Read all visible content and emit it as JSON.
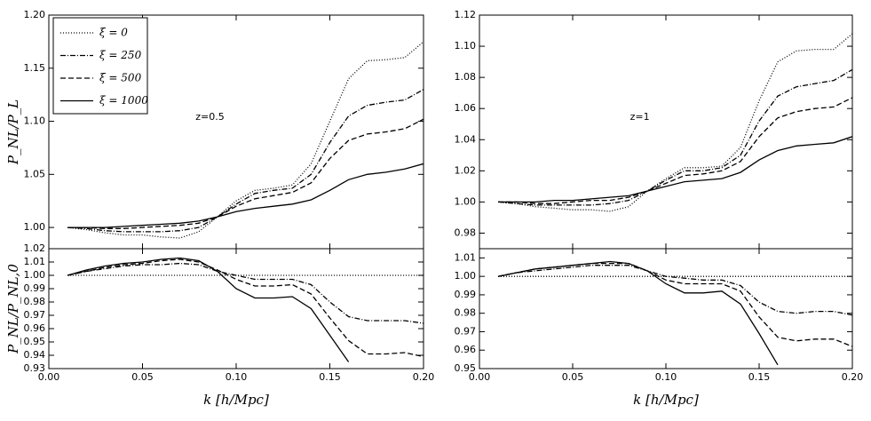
{
  "chart_data": [
    {
      "type": "line",
      "ylabel": "P_NL/P_L",
      "annotation": "z=0.5",
      "legend": "upper left",
      "x": [
        0.01,
        0.02,
        0.03,
        0.04,
        0.05,
        0.06,
        0.07,
        0.08,
        0.09,
        0.1,
        0.11,
        0.12,
        0.13,
        0.14,
        0.15,
        0.16,
        0.17,
        0.18,
        0.19,
        0.2
      ],
      "xlim": [
        0,
        0.2
      ],
      "xticks": [
        0,
        0.05,
        0.1,
        0.15,
        0.2
      ],
      "ylim": [
        0.98,
        1.2
      ],
      "yticks": [
        {
          "value": 1.0,
          "label": "1.00"
        },
        1.05,
        {
          "value": 1.1,
          "label": "1.10"
        },
        1.15,
        {
          "value": 1.2,
          "label": "1.20"
        }
      ],
      "series": [
        {
          "name": "ξ = 0",
          "color": "#000000",
          "dash": "1,2",
          "values": [
            1.0,
            0.998,
            0.995,
            0.993,
            0.993,
            0.991,
            0.99,
            0.996,
            1.01,
            1.025,
            1.035,
            1.037,
            1.04,
            1.06,
            1.1,
            1.14,
            1.157,
            1.158,
            1.16,
            1.175
          ]
        },
        {
          "name": "ξ = 250",
          "color": "#000000",
          "dash": "6,2,1,2",
          "values": [
            1.0,
            0.999,
            0.997,
            0.996,
            0.996,
            0.996,
            0.997,
            1.0,
            1.01,
            1.022,
            1.032,
            1.035,
            1.037,
            1.05,
            1.08,
            1.105,
            1.115,
            1.118,
            1.12,
            1.13
          ]
        },
        {
          "name": "ξ = 500",
          "color": "#000000",
          "dash": "6,3",
          "values": [
            1.0,
            1.0,
            0.999,
            0.999,
            1.0,
            1.001,
            1.002,
            1.004,
            1.01,
            1.02,
            1.027,
            1.03,
            1.033,
            1.042,
            1.065,
            1.082,
            1.088,
            1.09,
            1.093,
            1.102
          ]
        },
        {
          "name": "ξ = 1000",
          "color": "#000000",
          "dash": "none",
          "values": [
            1.0,
            1.0,
            1.0,
            1.001,
            1.002,
            1.003,
            1.004,
            1.006,
            1.01,
            1.015,
            1.018,
            1.02,
            1.022,
            1.026,
            1.035,
            1.045,
            1.05,
            1.052,
            1.055,
            1.06
          ]
        }
      ]
    },
    {
      "type": "line",
      "annotation": "z=1",
      "x": [
        0.01,
        0.02,
        0.03,
        0.04,
        0.05,
        0.06,
        0.07,
        0.08,
        0.09,
        0.1,
        0.11,
        0.12,
        0.13,
        0.14,
        0.15,
        0.16,
        0.17,
        0.18,
        0.19,
        0.2
      ],
      "xlim": [
        0,
        0.2
      ],
      "xticks": [
        0,
        0.05,
        0.1,
        0.15,
        0.2
      ],
      "ylim": [
        0.97,
        1.12
      ],
      "yticks": [
        0.98,
        {
          "value": 1.0,
          "label": "1.00"
        },
        1.02,
        1.04,
        1.06,
        1.08,
        {
          "value": 1.1,
          "label": "1.10"
        },
        1.12
      ],
      "series": [
        {
          "color": "#000000",
          "dash": "1,2",
          "values": [
            1.0,
            0.999,
            0.997,
            0.996,
            0.995,
            0.995,
            0.994,
            0.997,
            1.007,
            1.015,
            1.022,
            1.022,
            1.023,
            1.035,
            1.065,
            1.09,
            1.097,
            1.098,
            1.098,
            1.108
          ]
        },
        {
          "color": "#000000",
          "dash": "6,2,1,2",
          "values": [
            1.0,
            0.999,
            0.998,
            0.998,
            0.998,
            0.998,
            0.999,
            1.001,
            1.007,
            1.014,
            1.02,
            1.02,
            1.022,
            1.03,
            1.052,
            1.068,
            1.074,
            1.076,
            1.078,
            1.085
          ]
        },
        {
          "color": "#000000",
          "dash": "6,3",
          "values": [
            1.0,
            1.0,
            0.999,
            0.999,
            1.0,
            1.001,
            1.001,
            1.003,
            1.007,
            1.012,
            1.017,
            1.018,
            1.02,
            1.026,
            1.042,
            1.054,
            1.058,
            1.06,
            1.061,
            1.067
          ]
        },
        {
          "color": "#000000",
          "dash": "none",
          "values": [
            1.0,
            1.0,
            1.0,
            1.001,
            1.001,
            1.002,
            1.003,
            1.004,
            1.007,
            1.01,
            1.013,
            1.014,
            1.015,
            1.019,
            1.027,
            1.033,
            1.036,
            1.037,
            1.038,
            1.042
          ]
        }
      ]
    },
    {
      "type": "line",
      "ylabel": "P_NL/P_NL,0",
      "xlabel": "k [h/Mpc]",
      "x": [
        0.01,
        0.02,
        0.03,
        0.04,
        0.05,
        0.06,
        0.07,
        0.08,
        0.09,
        0.1,
        0.11,
        0.12,
        0.13,
        0.14,
        0.15,
        0.16,
        0.17,
        0.18,
        0.19,
        0.2
      ],
      "xlim": [
        0,
        0.2
      ],
      "xticks": [
        {
          "value": 0,
          "label": "0.00"
        },
        0.05,
        {
          "value": 0.1,
          "label": "0.10"
        },
        0.15,
        {
          "value": 0.2,
          "label": "0.20"
        }
      ],
      "ylim": [
        0.93,
        1.02
      ],
      "yticks": [
        0.93,
        0.94,
        0.95,
        0.96,
        0.97,
        0.98,
        0.99,
        {
          "value": 1.0,
          "label": "1.00"
        },
        1.01,
        1.02
      ],
      "series": [
        {
          "color": "#000000",
          "dash": "1,2",
          "values": [
            1,
            1,
            1,
            1,
            1,
            1,
            1,
            1,
            1,
            1,
            1,
            1,
            1,
            1,
            1,
            1,
            1,
            1,
            1,
            1
          ]
        },
        {
          "color": "#000000",
          "dash": "6,2,1,2",
          "values": [
            1.0,
            1.003,
            1.005,
            1.007,
            1.008,
            1.008,
            1.009,
            1.008,
            1.003,
            1.0,
            0.997,
            0.997,
            0.997,
            0.993,
            0.98,
            0.969,
            0.966,
            0.966,
            0.966,
            0.964
          ]
        },
        {
          "color": "#000000",
          "dash": "6,3",
          "values": [
            1.0,
            1.003,
            1.006,
            1.008,
            1.009,
            1.011,
            1.012,
            1.01,
            1.004,
            0.997,
            0.992,
            0.992,
            0.993,
            0.986,
            0.968,
            0.951,
            0.941,
            0.941,
            0.942,
            0.939
          ]
        },
        {
          "color": "#000000",
          "dash": "none",
          "values": [
            1.0,
            1.004,
            1.007,
            1.009,
            1.01,
            1.012,
            1.013,
            1.011,
            1.003,
            0.99,
            0.983,
            0.983,
            0.984,
            0.975,
            0.955,
            0.935,
            null,
            null,
            null,
            null
          ]
        }
      ]
    },
    {
      "type": "line",
      "xlabel": "k [h/Mpc]",
      "x": [
        0.01,
        0.02,
        0.03,
        0.04,
        0.05,
        0.06,
        0.07,
        0.08,
        0.09,
        0.1,
        0.11,
        0.12,
        0.13,
        0.14,
        0.15,
        0.16,
        0.17,
        0.18,
        0.19,
        0.2
      ],
      "xlim": [
        0,
        0.2
      ],
      "xticks": [
        {
          "value": 0,
          "label": "0.00"
        },
        0.05,
        {
          "value": 0.1,
          "label": "0.10"
        },
        0.15,
        {
          "value": 0.2,
          "label": "0.20"
        }
      ],
      "ylim": [
        0.95,
        1.015
      ],
      "yticks": [
        0.95,
        0.96,
        0.97,
        0.98,
        0.99,
        {
          "value": 1.0,
          "label": "1.00"
        },
        1.01
      ],
      "series": [
        {
          "color": "#000000",
          "dash": "1,2",
          "values": [
            1,
            1,
            1,
            1,
            1,
            1,
            1,
            1,
            1,
            1,
            1,
            1,
            1,
            1,
            1,
            1,
            1,
            1,
            1,
            1
          ]
        },
        {
          "color": "#000000",
          "dash": "6,2,1,2",
          "values": [
            1.0,
            1.002,
            1.003,
            1.004,
            1.005,
            1.006,
            1.006,
            1.006,
            1.003,
            1.0,
            0.999,
            0.998,
            0.998,
            0.995,
            0.986,
            0.981,
            0.98,
            0.981,
            0.981,
            0.979
          ]
        },
        {
          "color": "#000000",
          "dash": "6,3",
          "values": [
            1.0,
            1.002,
            1.004,
            1.005,
            1.006,
            1.007,
            1.007,
            1.007,
            1.003,
            0.998,
            0.996,
            0.996,
            0.996,
            0.992,
            0.978,
            0.967,
            0.965,
            0.966,
            0.966,
            0.962
          ]
        },
        {
          "color": "#000000",
          "dash": "none",
          "values": [
            1.0,
            1.002,
            1.004,
            1.005,
            1.006,
            1.007,
            1.008,
            1.007,
            1.003,
            0.996,
            0.991,
            0.991,
            0.992,
            0.985,
            0.969,
            0.952,
            null,
            null,
            null,
            null
          ]
        }
      ]
    }
  ]
}
